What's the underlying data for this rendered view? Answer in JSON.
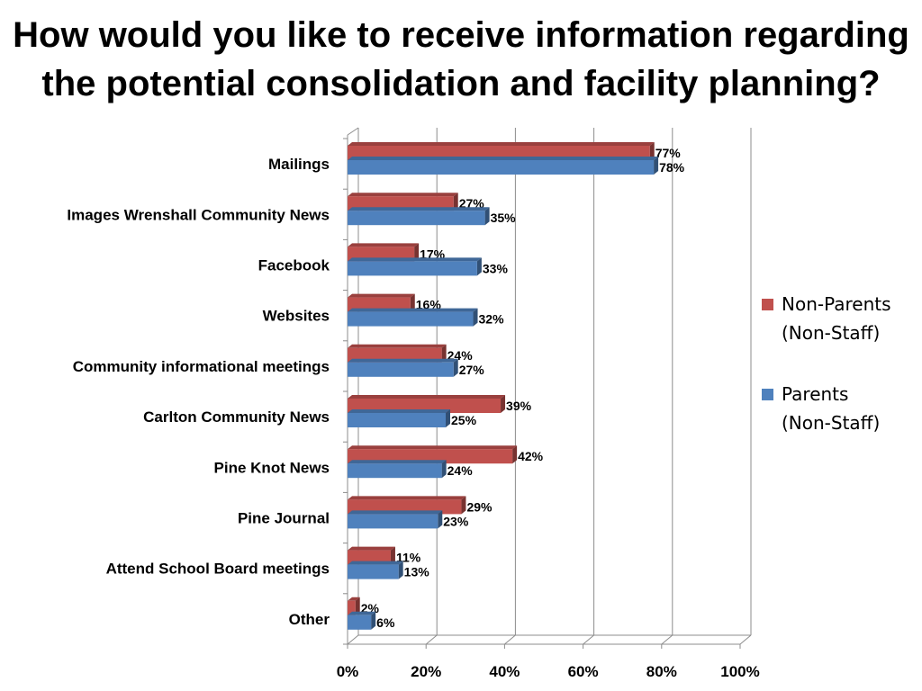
{
  "chart_data": {
    "type": "bar",
    "orientation": "horizontal",
    "style": "3d-clustered",
    "title_lines": [
      "How would you like to receive information regarding",
      "the potential consolidation and facility planning?"
    ],
    "categories": [
      "Mailings",
      "Images Wrenshall Community News",
      "Facebook",
      "Websites",
      "Community informational meetings",
      "Carlton Community News",
      "Pine Knot News",
      "Pine Journal",
      "Attend School Board meetings",
      "Other"
    ],
    "series": [
      {
        "name": "Non-Parents (Non-Staff)",
        "color": "#c0504d",
        "values": [
          77,
          27,
          17,
          16,
          24,
          39,
          42,
          29,
          11,
          2
        ],
        "labels": [
          "77%",
          "27%",
          "17%",
          "16%",
          "24%",
          "39%",
          "42%",
          "29%",
          "11%",
          "2%"
        ]
      },
      {
        "name": "Parents (Non-Staff)",
        "color": "#4f81bd",
        "values": [
          78,
          35,
          33,
          32,
          27,
          25,
          24,
          23,
          13,
          6
        ],
        "labels": [
          "78%",
          "35%",
          "33%",
          "32%",
          "27%",
          "25%",
          "24%",
          "23%",
          "13%",
          "6%"
        ]
      }
    ],
    "xlim": [
      0,
      100
    ],
    "xticks": [
      0,
      20,
      40,
      60,
      80,
      100
    ],
    "xtick_labels": [
      "0%",
      "20%",
      "40%",
      "60%",
      "80%",
      "100%"
    ],
    "grid": true,
    "legend_position": "right"
  },
  "legend": [
    {
      "line1": "Non-Parents",
      "line2": "(Non-Staff)",
      "color": "#c0504d"
    },
    {
      "line1": "Parents",
      "line2": "(Non-Staff)",
      "color": "#4f81bd"
    }
  ]
}
